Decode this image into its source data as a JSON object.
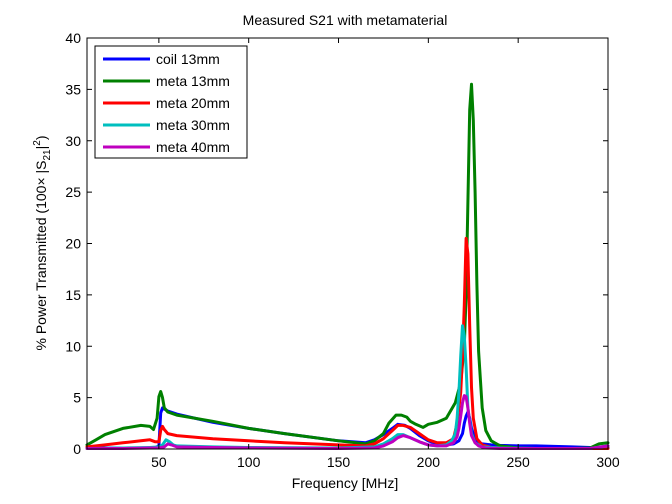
{
  "chart_data": {
    "type": "line",
    "title": "Measured S21 with metamaterial",
    "xlabel": "Frequency [MHz]",
    "ylabel": {
      "prefix": "% Power Transmitted (100× |S",
      "sub": "21",
      "mid": "|",
      "sup": "2",
      "suffix": ")"
    },
    "xlim": [
      10,
      300
    ],
    "ylim": [
      0,
      40
    ],
    "xticks": [
      50,
      100,
      150,
      200,
      250,
      300
    ],
    "yticks": [
      0,
      5,
      10,
      15,
      20,
      25,
      30,
      35,
      40
    ],
    "grid": false,
    "legend_position": "top-left",
    "series": [
      {
        "name": "coil 13mm",
        "color": "#0000ff",
        "x": [
          10,
          20,
          30,
          40,
          48,
          50,
          51,
          52,
          55,
          60,
          80,
          100,
          120,
          150,
          165,
          170,
          175,
          180,
          183,
          187,
          190,
          195,
          200,
          205,
          210,
          214,
          217,
          219,
          220,
          221,
          222,
          223,
          224,
          226,
          228,
          230,
          235,
          240,
          250,
          260,
          280,
          290,
          300
        ],
        "y": [
          0.1,
          0.1,
          0.1,
          0.1,
          0.15,
          0.3,
          3.5,
          4.0,
          3.7,
          3.4,
          2.6,
          2.0,
          1.5,
          0.8,
          0.6,
          0.9,
          1.4,
          2.0,
          2.4,
          2.3,
          2.0,
          1.3,
          0.8,
          0.5,
          0.4,
          0.5,
          0.8,
          1.5,
          2.5,
          3.2,
          3.6,
          3.0,
          2.0,
          1.0,
          0.6,
          0.5,
          0.4,
          0.35,
          0.3,
          0.3,
          0.2,
          0.15,
          0.1
        ]
      },
      {
        "name": "meta 13mm",
        "color": "#008000",
        "x": [
          10,
          15,
          20,
          30,
          40,
          45,
          47,
          49,
          50,
          51,
          52,
          53,
          55,
          60,
          80,
          100,
          120,
          150,
          165,
          170,
          175,
          178,
          182,
          185,
          188,
          190,
          193,
          197,
          200,
          205,
          210,
          215,
          218,
          220,
          221,
          222,
          223,
          224,
          225,
          226,
          227,
          228,
          230,
          232,
          235,
          240,
          245,
          250,
          260,
          280,
          290,
          295,
          300
        ],
        "y": [
          0.4,
          0.9,
          1.4,
          2.0,
          2.3,
          2.2,
          1.9,
          3.0,
          5.1,
          5.6,
          5.0,
          4.0,
          3.6,
          3.3,
          2.7,
          2.0,
          1.5,
          0.8,
          0.5,
          0.8,
          1.5,
          2.5,
          3.3,
          3.3,
          3.1,
          2.7,
          2.4,
          2.1,
          2.4,
          2.6,
          3.0,
          4.5,
          6.5,
          10.0,
          15.0,
          24.0,
          33.0,
          35.5,
          32.0,
          25.0,
          16.0,
          9.5,
          4.0,
          1.8,
          0.8,
          0.3,
          0.2,
          0.1,
          0.05,
          0.05,
          0.1,
          0.5,
          0.6
        ]
      },
      {
        "name": "meta 20mm",
        "color": "#ff0000",
        "x": [
          10,
          20,
          30,
          40,
          45,
          48,
          50,
          51,
          52,
          53,
          55,
          60,
          80,
          100,
          120,
          150,
          165,
          170,
          175,
          180,
          183,
          186,
          190,
          195,
          200,
          205,
          210,
          214,
          216,
          218,
          219,
          220,
          221,
          222,
          223,
          224,
          225,
          227,
          230,
          235,
          240,
          250,
          260,
          280,
          300
        ],
        "y": [
          0.2,
          0.4,
          0.6,
          0.8,
          0.9,
          0.7,
          0.7,
          1.8,
          2.2,
          1.9,
          1.5,
          1.3,
          1.0,
          0.8,
          0.6,
          0.4,
          0.3,
          0.5,
          1.0,
          1.8,
          2.3,
          2.3,
          2.1,
          1.5,
          0.9,
          0.6,
          0.6,
          1.0,
          2.5,
          5.5,
          9.0,
          14.0,
          20.5,
          19.0,
          12.0,
          6.0,
          3.0,
          1.0,
          0.4,
          0.15,
          0.1,
          0.05,
          0.05,
          0.05,
          0.05
        ]
      },
      {
        "name": "meta 30mm",
        "color": "#00bfbf",
        "x": [
          10,
          30,
          45,
          50,
          52,
          54,
          56,
          58,
          60,
          80,
          100,
          150,
          170,
          175,
          180,
          183,
          186,
          190,
          195,
          200,
          205,
          210,
          213,
          215,
          216,
          217,
          218,
          219,
          220,
          221,
          222,
          224,
          226,
          230,
          240,
          260,
          290,
          300
        ],
        "y": [
          0.05,
          0.1,
          0.15,
          0.2,
          0.4,
          0.9,
          0.7,
          0.4,
          0.3,
          0.2,
          0.15,
          0.1,
          0.2,
          0.5,
          1.0,
          1.4,
          1.4,
          1.1,
          0.7,
          0.4,
          0.3,
          0.4,
          0.8,
          1.5,
          3.0,
          5.5,
          9.0,
          12.0,
          11.0,
          8.0,
          4.0,
          1.5,
          0.6,
          0.2,
          0.1,
          0.05,
          0.05,
          0.3
        ]
      },
      {
        "name": "meta 40mm",
        "color": "#bf00bf",
        "x": [
          10,
          30,
          45,
          50,
          53,
          55,
          57,
          60,
          80,
          100,
          150,
          170,
          175,
          180,
          183,
          186,
          190,
          195,
          200,
          205,
          210,
          214,
          216,
          217,
          218,
          219,
          220,
          221,
          222,
          223,
          224,
          226,
          228,
          232,
          240,
          260,
          290,
          300
        ],
        "y": [
          0.05,
          0.05,
          0.1,
          0.1,
          0.2,
          0.5,
          0.4,
          0.2,
          0.15,
          0.1,
          0.05,
          0.1,
          0.3,
          0.7,
          1.1,
          1.3,
          1.1,
          0.7,
          0.4,
          0.3,
          0.3,
          0.6,
          1.2,
          2.0,
          3.2,
          4.5,
          5.2,
          5.1,
          4.0,
          2.5,
          1.3,
          0.6,
          0.3,
          0.1,
          0.05,
          0.05,
          0.05,
          0.3
        ]
      }
    ]
  }
}
